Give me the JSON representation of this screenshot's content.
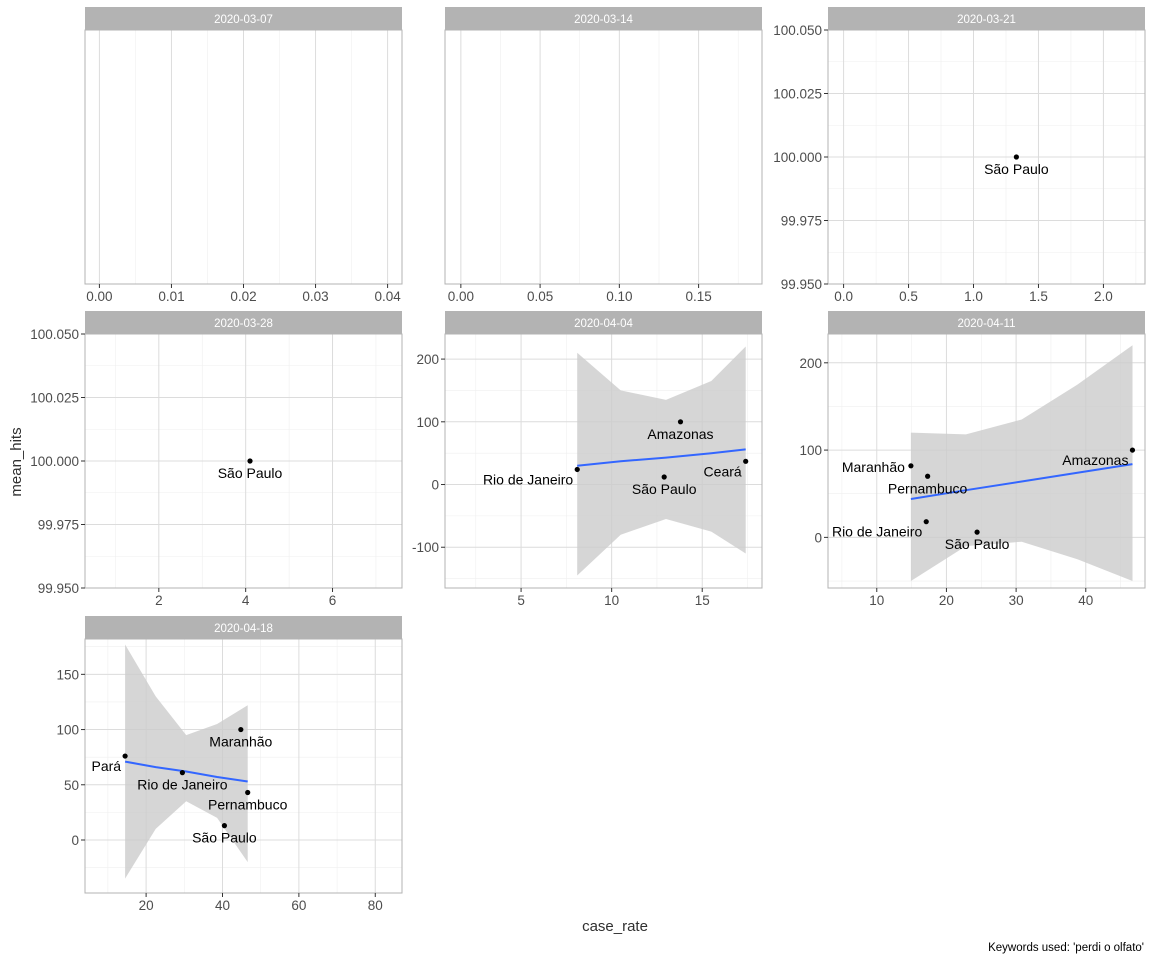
{
  "figure": {
    "xlabel": "case_rate",
    "ylabel": "mean_hits",
    "caption": "Keywords used: 'perdi o olfato'",
    "colors": {
      "panel_background": "#ffffff",
      "grid_major": "#dcdcdc",
      "grid_minor": "#efefef",
      "panel_border": "#b3b3b3",
      "strip_background": "#b3b3b3",
      "strip_text": "#ffffff",
      "point": "#000000",
      "smooth_line": "#3366ff",
      "ribbon": "#cccccc"
    }
  },
  "chart_data": [
    {
      "type": "scatter",
      "facet": "2020-03-07",
      "xlim": [
        -0.002,
        0.042
      ],
      "x_ticks": [
        "0.00",
        "0.01",
        "0.02",
        "0.03",
        "0.04"
      ],
      "y_ticks": [],
      "points": [],
      "smooth": null
    },
    {
      "type": "scatter",
      "facet": "2020-03-14",
      "xlim": [
        -0.01,
        0.19
      ],
      "x_ticks": [
        "0.00",
        "0.05",
        "0.10",
        "0.15"
      ],
      "y_ticks": [],
      "points": [],
      "smooth": null
    },
    {
      "type": "scatter",
      "facet": "2020-03-21",
      "xlim": [
        -0.12,
        2.32
      ],
      "ylim": [
        99.95,
        100.05
      ],
      "x_ticks": [
        "0.0",
        "0.5",
        "1.0",
        "1.5",
        "2.0"
      ],
      "y_ticks": [
        "99.950",
        "99.975",
        "100.000",
        "100.025",
        "100.050"
      ],
      "points": [
        {
          "x": 1.33,
          "y": 100.0,
          "label": "São Paulo",
          "label_pos": "below"
        }
      ],
      "smooth": null
    },
    {
      "type": "scatter",
      "facet": "2020-03-28",
      "xlim": [
        0.3,
        7.6
      ],
      "ylim": [
        99.95,
        100.05
      ],
      "x_ticks": [
        "2",
        "4",
        "6"
      ],
      "y_ticks": [
        "99.950",
        "99.975",
        "100.000",
        "100.025",
        "100.050"
      ],
      "points": [
        {
          "x": 4.1,
          "y": 100.0,
          "label": "São Paulo",
          "label_pos": "below"
        }
      ],
      "smooth": null
    },
    {
      "type": "scatter",
      "facet": "2020-04-04",
      "xlim": [
        0.8,
        18.3
      ],
      "ylim": [
        -165,
        240
      ],
      "x_ticks": [
        "5",
        "10",
        "15"
      ],
      "y_ticks": [
        "-100",
        "0",
        "100",
        "200"
      ],
      "points": [
        {
          "x": 8.1,
          "y": 24,
          "label": "Rio de Janeiro",
          "label_pos": "below-left"
        },
        {
          "x": 13.8,
          "y": 100,
          "label": "Amazonas",
          "label_pos": "below"
        },
        {
          "x": 12.9,
          "y": 12,
          "label": "São Paulo",
          "label_pos": "below"
        },
        {
          "x": 17.4,
          "y": 37,
          "label": "Ceará",
          "label_pos": "below-left"
        }
      ],
      "smooth": {
        "x": [
          8.1,
          10.5,
          13.0,
          15.5,
          17.4
        ],
        "fit": [
          30,
          37,
          43,
          50,
          56
        ],
        "lower": [
          -145,
          -80,
          -55,
          -75,
          -110
        ],
        "upper": [
          210,
          150,
          135,
          165,
          220
        ]
      }
    },
    {
      "type": "scatter",
      "facet": "2020-04-11",
      "xlim": [
        3.0,
        48.5
      ],
      "ylim": [
        -58,
        233
      ],
      "x_ticks": [
        "10",
        "20",
        "30",
        "40"
      ],
      "y_ticks": [
        "0",
        "100",
        "200"
      ],
      "points": [
        {
          "x": 14.9,
          "y": 82,
          "label": "Maranhão",
          "label_pos": "left"
        },
        {
          "x": 17.3,
          "y": 70,
          "label": "Pernambuco",
          "label_pos": "below"
        },
        {
          "x": 17.1,
          "y": 18,
          "label": "Rio de Janeiro",
          "label_pos": "below-left"
        },
        {
          "x": 24.4,
          "y": 6,
          "label": "São Paulo",
          "label_pos": "below"
        },
        {
          "x": 46.7,
          "y": 100,
          "label": "Amazonas",
          "label_pos": "below-left"
        }
      ],
      "smooth": {
        "x": [
          14.9,
          22.8,
          30.8,
          38.8,
          46.7
        ],
        "fit": [
          44,
          54,
          64,
          74,
          84
        ],
        "lower": [
          -50,
          -10,
          -5,
          -25,
          -50
        ],
        "upper": [
          120,
          118,
          135,
          175,
          220
        ]
      }
    },
    {
      "type": "scatter",
      "facet": "2020-04-18",
      "xlim": [
        4.0,
        87.0
      ],
      "ylim": [
        -48,
        182
      ],
      "x_ticks": [
        "20",
        "40",
        "60",
        "80"
      ],
      "y_ticks": [
        "0",
        "50",
        "100",
        "150"
      ],
      "points": [
        {
          "x": 14.5,
          "y": 76,
          "label": "Pará",
          "label_pos": "below-left"
        },
        {
          "x": 29.5,
          "y": 61,
          "label": "Rio de Janeiro",
          "label_pos": "below"
        },
        {
          "x": 44.8,
          "y": 100,
          "label": "Maranhão",
          "label_pos": "below"
        },
        {
          "x": 46.6,
          "y": 43,
          "label": "Pernambuco",
          "label_pos": "below"
        },
        {
          "x": 40.5,
          "y": 13,
          "label": "São Paulo",
          "label_pos": "below"
        }
      ],
      "smooth": {
        "x": [
          14.5,
          22.5,
          30.5,
          38.6,
          46.6
        ],
        "fit": [
          71,
          66,
          62,
          57,
          53
        ],
        "lower": [
          -35,
          10,
          35,
          20,
          -20
        ],
        "upper": [
          177,
          130,
          95,
          105,
          122
        ]
      }
    }
  ]
}
